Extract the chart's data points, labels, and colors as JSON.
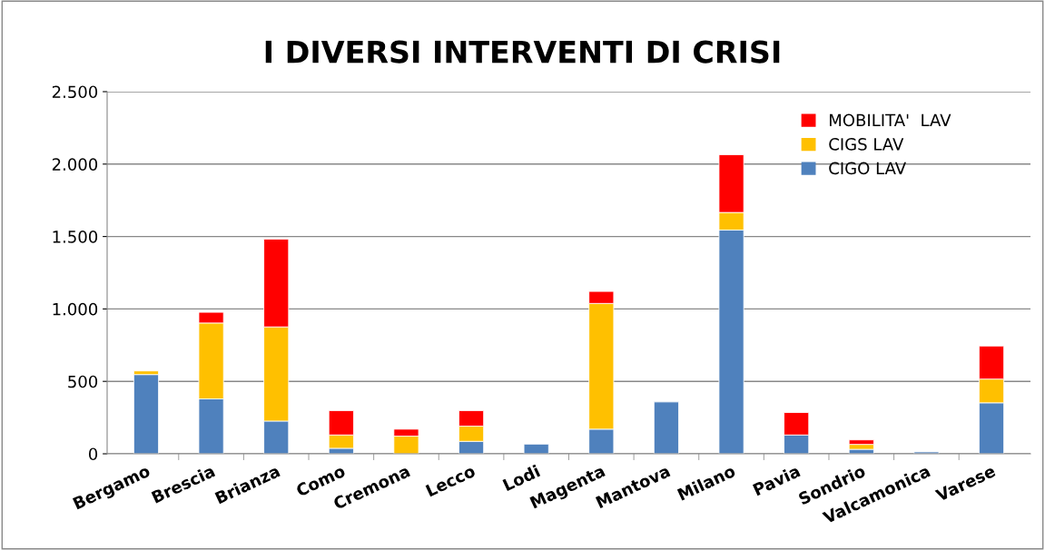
{
  "chart_data": {
    "type": "bar",
    "title": "I DIVERSI INTERVENTI DI CRISI",
    "stacked": true,
    "categories": [
      "Bergamo",
      "Brescia",
      "Brianza",
      "Como",
      "Cremona",
      "Lecco",
      "Lodi",
      "Magenta",
      "Mantova",
      "Milano",
      "Pavia",
      "Sondrio",
      "Valcamonica",
      "Varese"
    ],
    "series": [
      {
        "name": "CIGO LAV",
        "color": "#4f81bd",
        "values": [
          547,
          379,
          226,
          38,
          null,
          86,
          67,
          170,
          358,
          1545,
          130,
          31,
          13,
          352
        ]
      },
      {
        "name": "CIGS LAV",
        "color": "#ffc000",
        "values": [
          25,
          524,
          650,
          92,
          122,
          105,
          null,
          868,
          null,
          121,
          null,
          34,
          null,
          164
        ]
      },
      {
        "name": "MOBILITA'  LAV",
        "color": "#ff0000",
        "values": [
          null,
          74,
          606,
          168,
          48,
          107,
          null,
          83,
          null,
          399,
          155,
          31,
          null,
          228
        ]
      }
    ],
    "ylim": [
      0,
      2500
    ],
    "yticks": [
      {
        "value": 0,
        "label": "0"
      },
      {
        "value": 500,
        "label": "500"
      },
      {
        "value": 1000,
        "label": "1.000"
      },
      {
        "value": 1500,
        "label": "1.500"
      },
      {
        "value": 2000,
        "label": "2.000"
      },
      {
        "value": 2500,
        "label": "2.500"
      }
    ],
    "grid": "y",
    "legend": "top right"
  }
}
